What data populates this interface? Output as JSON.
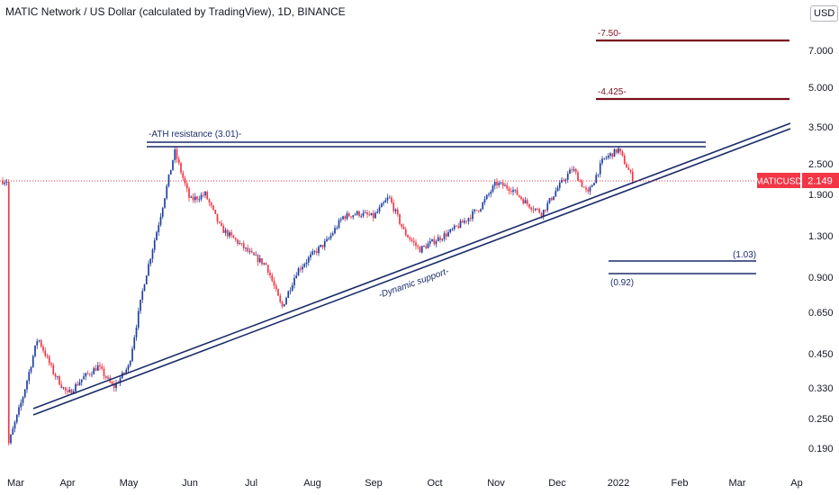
{
  "header": {
    "title": "MATIC Network / US Dollar (calculated by TradingView), 1D, BINANCE",
    "currency": "USD"
  },
  "chart_data": {
    "type": "candlestick",
    "symbol": "MATICUSD",
    "last_price": "2.149",
    "y_scale": "log",
    "y_ticks": [
      "7.000",
      "5.000",
      "3.500",
      "2.500",
      "1.900",
      "1.300",
      "0.900",
      "0.650",
      "0.450",
      "0.330",
      "0.250",
      "0.190"
    ],
    "x_ticks": [
      "Mar",
      "Apr",
      "May",
      "Jun",
      "Jul",
      "Aug",
      "Sep",
      "Oct",
      "Nov",
      "Dec",
      "2022",
      "Feb",
      "Mar",
      "Ap"
    ],
    "colors": {
      "up": "#1e3fa0",
      "down": "#f23645",
      "resistance": "#7b0d1e",
      "support": "#1a2c6b",
      "price_line": "#f23645"
    },
    "price_path": [
      [
        "Mar",
        0.19
      ],
      [
        "Mar",
        0.3
      ],
      [
        "Mar",
        0.52
      ],
      [
        "Mar",
        0.38
      ],
      [
        "Apr",
        0.31
      ],
      [
        "Apr",
        0.36
      ],
      [
        "Apr",
        0.4
      ],
      [
        "Apr",
        0.33
      ],
      [
        "May",
        0.4
      ],
      [
        "May",
        0.85
      ],
      [
        "May",
        1.5
      ],
      [
        "May",
        2.8
      ],
      [
        "Jun",
        1.8
      ],
      [
        "Jun",
        1.9
      ],
      [
        "Jun",
        1.4
      ],
      [
        "Jun",
        1.25
      ],
      [
        "Jul",
        1.1
      ],
      [
        "Jul",
        1.0
      ],
      [
        "Jul",
        0.68
      ],
      [
        "Jul",
        0.95
      ],
      [
        "Aug",
        1.1
      ],
      [
        "Aug",
        1.25
      ],
      [
        "Aug",
        1.55
      ],
      [
        "Aug",
        1.6
      ],
      [
        "Sep",
        1.55
      ],
      [
        "Sep",
        1.85
      ],
      [
        "Sep",
        1.35
      ],
      [
        "Sep",
        1.15
      ],
      [
        "Oct",
        1.25
      ],
      [
        "Oct",
        1.35
      ],
      [
        "Oct",
        1.5
      ],
      [
        "Oct",
        1.7
      ],
      [
        "Nov",
        2.1
      ],
      [
        "Nov",
        2.0
      ],
      [
        "Nov",
        1.75
      ],
      [
        "Nov",
        1.6
      ],
      [
        "Dec",
        2.0
      ],
      [
        "Dec",
        2.4
      ],
      [
        "Dec",
        1.9
      ],
      [
        "Dec",
        2.6
      ],
      [
        "2022",
        2.85
      ],
      [
        "2022",
        2.6
      ],
      [
        "2022",
        2.149
      ]
    ],
    "annotations": [
      {
        "label": "-ATH resistance (3.01)-",
        "kind": "horizontal",
        "value": 3.01,
        "color": "#1a2c6b"
      },
      {
        "label": "-7.50-",
        "kind": "horizontal",
        "value": 7.5,
        "color": "#7b0d1e"
      },
      {
        "label": "-4.425-",
        "kind": "horizontal",
        "value": 4.425,
        "color": "#7b0d1e"
      },
      {
        "label": "(1.03)",
        "kind": "horizontal",
        "value": 1.03,
        "color": "#1a2c6b"
      },
      {
        "label": "(0.92)",
        "kind": "horizontal",
        "value": 0.92,
        "color": "#1a2c6b"
      },
      {
        "label": "-Dynamic support-",
        "kind": "trendline",
        "color": "#1a2c6b"
      }
    ]
  }
}
